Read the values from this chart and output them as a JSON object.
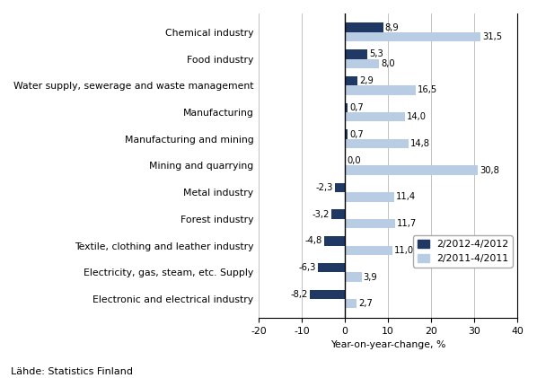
{
  "categories": [
    "Chemical industry",
    "Food industry",
    "Water supply, sewerage and waste management",
    "Manufacturing",
    "Manufacturing and mining",
    "Mining and quarrying",
    "Metal industry",
    "Forest industry",
    "Textile, clothing and leather industry",
    "Electricity, gas, steam, etc. Supply",
    "Electronic and electrical industry"
  ],
  "values_2012": [
    8.9,
    5.3,
    2.9,
    0.7,
    0.7,
    0.0,
    -2.3,
    -3.2,
    -4.8,
    -6.3,
    -8.2
  ],
  "values_2011": [
    31.5,
    8.0,
    16.5,
    14.0,
    14.8,
    30.8,
    11.4,
    11.7,
    11.0,
    3.9,
    2.7
  ],
  "color_2012": "#1f3864",
  "color_2011": "#b8cce4",
  "xlabel": "Year-on-year-change, %",
  "legend_2012": "2/2012-4/2012",
  "legend_2011": "2/2011-4/2011",
  "source": "Lähde: Statistics Finland",
  "xlim": [
    -20,
    40
  ],
  "xticks": [
    -20,
    -10,
    0,
    10,
    20,
    30,
    40
  ],
  "bar_height": 0.35,
  "label_fontsize": 7.2,
  "tick_fontsize": 7.8,
  "source_fontsize": 8
}
